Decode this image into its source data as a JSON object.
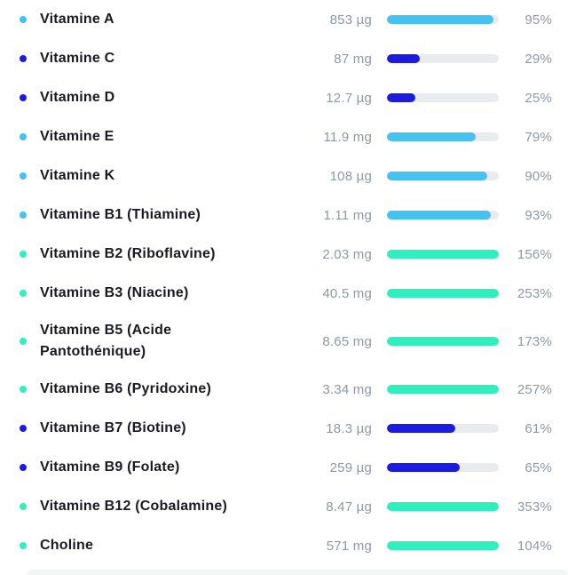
{
  "colors": {
    "light_blue": "#45c2ef",
    "dark_blue": "#1c1ce0",
    "teal": "#2ff0bd",
    "track": "#e9ebee",
    "value_text": "#8d99a6",
    "name_text": "#1a1a22",
    "next_card_bg": "#f2f6f5"
  },
  "rows": [
    {
      "name": "Vitamine A",
      "amount": "853 µg",
      "percent": "95%",
      "fill": 95,
      "color": "light_blue",
      "tall": false
    },
    {
      "name": "Vitamine C",
      "amount": "87 mg",
      "percent": "29%",
      "fill": 29,
      "color": "dark_blue",
      "tall": false
    },
    {
      "name": "Vitamine D",
      "amount": "12.7 µg",
      "percent": "25%",
      "fill": 25,
      "color": "dark_blue",
      "tall": false
    },
    {
      "name": "Vitamine E",
      "amount": "11.9 mg",
      "percent": "79%",
      "fill": 79,
      "color": "light_blue",
      "tall": false
    },
    {
      "name": "Vitamine K",
      "amount": "108 µg",
      "percent": "90%",
      "fill": 90,
      "color": "light_blue",
      "tall": false
    },
    {
      "name": "Vitamine B1 (Thiamine)",
      "amount": "1.11 mg",
      "percent": "93%",
      "fill": 93,
      "color": "light_blue",
      "tall": false
    },
    {
      "name": "Vitamine B2 (Riboflavine)",
      "amount": "2.03 mg",
      "percent": "156%",
      "fill": 100,
      "color": "teal",
      "tall": false
    },
    {
      "name": "Vitamine B3 (Niacine)",
      "amount": "40.5 mg",
      "percent": "253%",
      "fill": 100,
      "color": "teal",
      "tall": false
    },
    {
      "name": "Vitamine B5 (Acide Pantothénique)",
      "amount": "8.65 mg",
      "percent": "173%",
      "fill": 100,
      "color": "teal",
      "tall": true
    },
    {
      "name": "Vitamine B6 (Pyridoxine)",
      "amount": "3.34 mg",
      "percent": "257%",
      "fill": 100,
      "color": "teal",
      "tall": false
    },
    {
      "name": "Vitamine B7 (Biotine)",
      "amount": "18.3 µg",
      "percent": "61%",
      "fill": 61,
      "color": "dark_blue",
      "tall": false
    },
    {
      "name": "Vitamine B9 (Folate)",
      "amount": "259 µg",
      "percent": "65%",
      "fill": 65,
      "color": "dark_blue",
      "tall": false
    },
    {
      "name": "Vitamine B12 (Cobalamine)",
      "amount": "8.47 µg",
      "percent": "353%",
      "fill": 100,
      "color": "teal",
      "tall": false
    },
    {
      "name": "Choline",
      "amount": "571 mg",
      "percent": "104%",
      "fill": 100,
      "color": "teal",
      "tall": false
    }
  ],
  "chart_data": {
    "type": "bar",
    "orientation": "horizontal",
    "categories": [
      "Vitamine A",
      "Vitamine C",
      "Vitamine D",
      "Vitamine E",
      "Vitamine K",
      "Vitamine B1 (Thiamine)",
      "Vitamine B2 (Riboflavine)",
      "Vitamine B3 (Niacine)",
      "Vitamine B5 (Acide Pantothénique)",
      "Vitamine B6 (Pyridoxine)",
      "Vitamine B7 (Biotine)",
      "Vitamine B9 (Folate)",
      "Vitamine B12 (Cobalamine)",
      "Choline"
    ],
    "series": [
      {
        "name": "percent_of_reference_intake",
        "values": [
          95,
          29,
          25,
          79,
          90,
          93,
          156,
          253,
          173,
          257,
          61,
          65,
          353,
          104
        ]
      },
      {
        "name": "amount_labels",
        "values": [
          "853 µg",
          "87 mg",
          "12.7 µg",
          "11.9 mg",
          "108 µg",
          "1.11 mg",
          "2.03 mg",
          "40.5 mg",
          "8.65 mg",
          "3.34 mg",
          "18.3 µg",
          "259 µg",
          "8.47 µg",
          "571 mg"
        ]
      }
    ],
    "title": "",
    "xlabel": "",
    "ylabel": "",
    "bar_scale_max_percent": 100,
    "grid": false,
    "legend": false
  }
}
